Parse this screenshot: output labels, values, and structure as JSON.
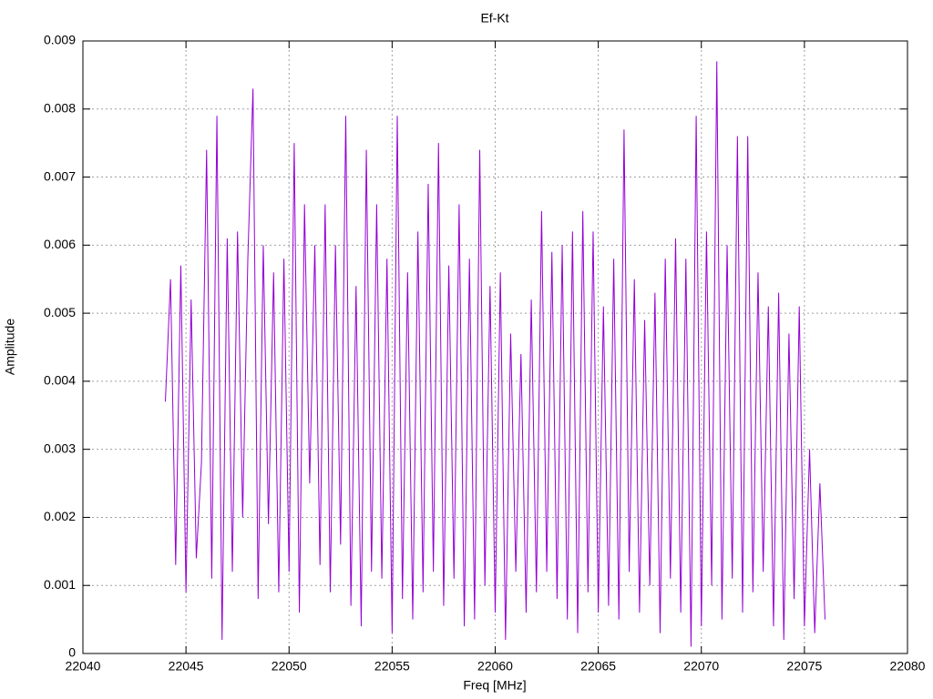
{
  "chart_data": {
    "type": "line",
    "title": "Ef-Kt",
    "xlabel": "Freq [MHz]",
    "ylabel": "Amplitude",
    "x": [
      22044,
      22044.25,
      22044.5,
      22044.75,
      22045,
      22045.25,
      22045.5,
      22045.75,
      22046,
      22046.25,
      22046.5,
      22046.75,
      22047,
      22047.25,
      22047.5,
      22047.75,
      22048,
      22048.25,
      22048.5,
      22048.75,
      22049,
      22049.25,
      22049.5,
      22049.75,
      22050,
      22050.25,
      22050.5,
      22050.75,
      22051,
      22051.25,
      22051.5,
      22051.75,
      22052,
      22052.25,
      22052.5,
      22052.75,
      22053,
      22053.25,
      22053.5,
      22053.75,
      22054,
      22054.25,
      22054.5,
      22054.75,
      22055,
      22055.25,
      22055.5,
      22055.75,
      22056,
      22056.25,
      22056.5,
      22056.75,
      22057,
      22057.25,
      22057.5,
      22057.75,
      22058,
      22058.25,
      22058.5,
      22058.75,
      22059,
      22059.25,
      22059.5,
      22059.75,
      22060,
      22060.25,
      22060.5,
      22060.75,
      22061,
      22061.25,
      22061.5,
      22061.75,
      22062,
      22062.25,
      22062.5,
      22062.75,
      22063,
      22063.25,
      22063.5,
      22063.75,
      22064,
      22064.25,
      22064.5,
      22064.75,
      22065,
      22065.25,
      22065.5,
      22065.75,
      22066,
      22066.25,
      22066.5,
      22066.75,
      22067,
      22067.25,
      22067.5,
      22067.75,
      22068,
      22068.25,
      22068.5,
      22068.75,
      22069,
      22069.25,
      22069.5,
      22069.75,
      22070,
      22070.25,
      22070.5,
      22070.75,
      22071,
      22071.25,
      22071.5,
      22071.75,
      22072,
      22072.25,
      22072.5,
      22072.75,
      22073,
      22073.25,
      22073.5,
      22073.75,
      22074,
      22074.25,
      22074.5,
      22074.75,
      22075,
      22075.25,
      22075.5,
      22075.75,
      22076
    ],
    "values": [
      0.0037,
      0.0055,
      0.0013,
      0.0057,
      0.0009,
      0.0052,
      0.0014,
      0.0028,
      0.0074,
      0.0011,
      0.0079,
      0.0002,
      0.0061,
      0.0012,
      0.0062,
      0.002,
      0.0058,
      0.0083,
      0.0008,
      0.006,
      0.0019,
      0.0056,
      0.0009,
      0.0058,
      0.0012,
      0.0075,
      0.0006,
      0.0066,
      0.0025,
      0.006,
      0.0013,
      0.0066,
      0.0009,
      0.006,
      0.0016,
      0.0079,
      0.0007,
      0.0054,
      0.0004,
      0.0074,
      0.0012,
      0.0066,
      0.0011,
      0.0058,
      0.0003,
      0.0079,
      0.0008,
      0.0056,
      0.0005,
      0.0062,
      0.0009,
      0.0069,
      0.0012,
      0.0075,
      0.0007,
      0.0057,
      0.0011,
      0.0066,
      0.0004,
      0.0058,
      0.0005,
      0.0074,
      0.001,
      0.0054,
      0.0006,
      0.0056,
      0.0002,
      0.0047,
      0.0012,
      0.0044,
      0.0006,
      0.0052,
      0.0009,
      0.0065,
      0.0012,
      0.0059,
      0.0008,
      0.006,
      0.0005,
      0.0062,
      0.0003,
      0.0065,
      0.0009,
      0.0062,
      0.0006,
      0.0051,
      0.0007,
      0.0058,
      0.0005,
      0.0077,
      0.0012,
      0.0055,
      0.0006,
      0.0049,
      0.001,
      0.0053,
      0.0003,
      0.0058,
      0.0011,
      0.0061,
      0.0006,
      0.0058,
      0.0001,
      0.0079,
      0.0004,
      0.0062,
      0.001,
      0.0087,
      0.0005,
      0.006,
      0.0011,
      0.0076,
      0.0006,
      0.0076,
      0.0009,
      0.0056,
      0.0012,
      0.0051,
      0.0004,
      0.0053,
      0.0002,
      0.0047,
      0.0008,
      0.0051,
      0.0004,
      0.003,
      0.0003,
      0.0025,
      0.0005
    ],
    "color": "#9400d3",
    "xlim": [
      22040,
      22080
    ],
    "xticks": [
      22040,
      22045,
      22050,
      22055,
      22060,
      22065,
      22070,
      22075,
      22080
    ],
    "ylim": [
      0,
      0.009
    ],
    "yticks": [
      0,
      0.001,
      0.002,
      0.003,
      0.004,
      0.005,
      0.006,
      0.007,
      0.008,
      0.009
    ],
    "grid": true
  }
}
